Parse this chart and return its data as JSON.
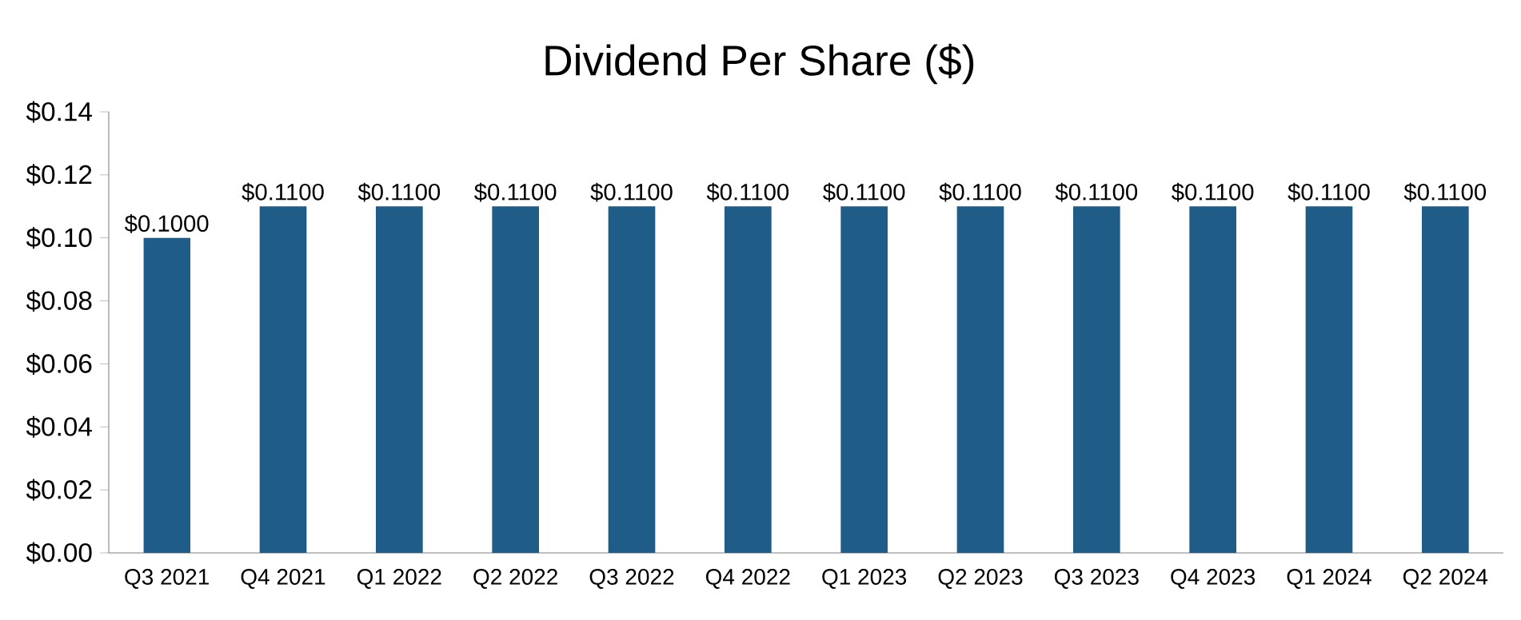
{
  "chart_data": {
    "type": "bar",
    "title": "Dividend Per Share ($)",
    "categories": [
      "Q3 2021",
      "Q4 2021",
      "Q1 2022",
      "Q2 2022",
      "Q3 2022",
      "Q4 2022",
      "Q1 2023",
      "Q2 2023",
      "Q3 2023",
      "Q4 2023",
      "Q1 2024",
      "Q2 2024"
    ],
    "values": [
      0.1,
      0.11,
      0.11,
      0.11,
      0.11,
      0.11,
      0.11,
      0.11,
      0.11,
      0.11,
      0.11,
      0.11
    ],
    "value_labels": [
      "$0.1000",
      "$0.1100",
      "$0.1100",
      "$0.1100",
      "$0.1100",
      "$0.1100",
      "$0.1100",
      "$0.1100",
      "$0.1100",
      "$0.1100",
      "$0.1100",
      "$0.1100"
    ],
    "color": "#1f5c87",
    "ylim": [
      0,
      0.14
    ],
    "yticks": [
      {
        "value": 0,
        "label": "$0.00"
      },
      {
        "value": 0.02,
        "label": "$0.02"
      },
      {
        "value": 0.04,
        "label": "$0.04"
      },
      {
        "value": 0.06,
        "label": "$0.06"
      },
      {
        "value": 0.08,
        "label": "$0.08"
      },
      {
        "value": 0.1,
        "label": "$0.10"
      },
      {
        "value": 0.12,
        "label": "$0.12"
      },
      {
        "value": 0.14,
        "label": "$0.14"
      }
    ]
  }
}
